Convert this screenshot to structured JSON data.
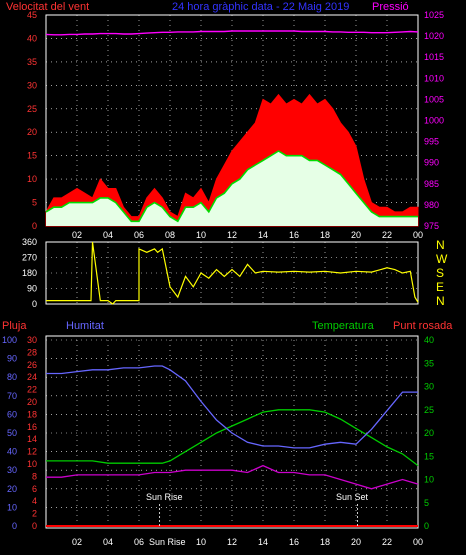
{
  "header": {
    "wind_speed_label": "Velocitat del vent",
    "period_title": "24 hora gràphic data - 22 Maig 2019",
    "pressure_label": "Pressió"
  },
  "colors": {
    "wind_gust": "#ff0000",
    "wind_avg": "#00dd00",
    "wind_fill": "#e6ffe6",
    "pressure": "#ff00ff",
    "direction": "#ffff00",
    "rain": "#ff0000",
    "humidity": "#6666ff",
    "temperature": "#00cc00",
    "dew_point": "#cc00cc",
    "header_title": "#3333ff",
    "left_axis": "#ff3333"
  },
  "direction_panel": {
    "compass": [
      "N",
      "W",
      "S",
      "E",
      "N"
    ]
  },
  "bottom_panel": {
    "rain_label": "Pluja",
    "humidity_label": "Humitat",
    "temperature_label": "Temperatura",
    "dew_label": "Punt rosada",
    "sunrise_label": "Sun Rise",
    "sunset_label": "Sun Set",
    "sunrise_tick_label": "Sun Rise"
  },
  "chart_data": [
    {
      "type": "area",
      "name": "wind-and-pressure",
      "x_ticks": [
        "02",
        "04",
        "06",
        "08",
        "10",
        "12",
        "14",
        "16",
        "18",
        "20",
        "22",
        "00"
      ],
      "ylim_left": [
        0,
        45
      ],
      "y_ticks_left": [
        0,
        5,
        10,
        15,
        20,
        25,
        30,
        35,
        40,
        45
      ],
      "ylim_right": [
        975,
        1025
      ],
      "y_ticks_right": [
        975,
        980,
        985,
        990,
        995,
        1000,
        1005,
        1010,
        1015,
        1020,
        1025
      ],
      "grid": true,
      "x_hours": [
        0,
        0.5,
        1,
        1.5,
        2,
        2.5,
        3,
        3.5,
        4,
        4.5,
        5,
        5.5,
        6,
        6.5,
        7,
        7.5,
        8,
        8.5,
        9,
        9.5,
        10,
        10.5,
        11,
        11.5,
        12,
        12.5,
        13,
        13.5,
        14,
        14.5,
        15,
        15.5,
        16,
        16.5,
        17,
        17.5,
        18,
        18.5,
        19,
        19.5,
        20,
        20.5,
        21,
        21.5,
        22,
        22.5,
        23,
        23.5,
        24
      ],
      "series": [
        {
          "key": "gust",
          "values": [
            3,
            6,
            6,
            7,
            8,
            7,
            6,
            10,
            8,
            8,
            4,
            2,
            2,
            6,
            8,
            6,
            3,
            2,
            7,
            6,
            8,
            5,
            10,
            13,
            16,
            18,
            20,
            22,
            27,
            26,
            28,
            26,
            27,
            26,
            28,
            26,
            27,
            25,
            22,
            20,
            17,
            10,
            5,
            4,
            4,
            3,
            3,
            4,
            4
          ]
        },
        {
          "key": "average",
          "values": [
            3,
            4,
            4,
            5,
            5,
            5,
            5,
            6,
            6,
            5,
            3,
            1,
            1,
            4,
            5,
            4,
            2,
            1,
            4,
            4,
            5,
            3,
            6,
            7,
            9,
            10,
            12,
            13,
            14,
            15,
            16,
            15,
            15,
            15,
            14,
            14,
            13,
            12,
            11,
            9,
            7,
            5,
            3,
            2,
            2,
            2,
            2,
            2,
            2
          ]
        },
        {
          "key": "pressure",
          "values": [
            1020.4,
            1020.3,
            1020.3,
            1020.4,
            1020.4,
            1020.5,
            1020.5,
            1020.6,
            1020.6,
            1020.6,
            1020.5,
            1020.5,
            1020.6,
            1020.7,
            1020.8,
            1020.9,
            1020.9,
            1021,
            1021,
            1021,
            1021.1,
            1021.1,
            1021.1,
            1021.1,
            1021.2,
            1021.2,
            1021.2,
            1021.2,
            1021.2,
            1021.2,
            1021.2,
            1021.2,
            1021.2,
            1021.1,
            1021.1,
            1021.1,
            1021.1,
            1021,
            1021,
            1020.9,
            1020.9,
            1020.9,
            1020.8,
            1020.8,
            1020.8,
            1020.9,
            1021,
            1021.1,
            1021
          ]
        }
      ]
    },
    {
      "type": "line",
      "name": "wind-direction",
      "y_ticks": [
        0,
        90,
        180,
        270,
        360
      ],
      "ylim": [
        0,
        360
      ],
      "x_hours": [
        0,
        1,
        2,
        2.9,
        3,
        3.5,
        4,
        4.3,
        4.5,
        5,
        5.5,
        6,
        6,
        6.5,
        7,
        7.2,
        7.5,
        8,
        8.5,
        9,
        9.5,
        10,
        10.5,
        11,
        11.5,
        12,
        12.5,
        13,
        13.5,
        14,
        15,
        16,
        17,
        18,
        19,
        20,
        21,
        22,
        22.5,
        23,
        23.5,
        23.8,
        24
      ],
      "values": [
        20,
        20,
        20,
        20,
        360,
        20,
        20,
        0,
        20,
        20,
        20,
        20,
        320,
        300,
        320,
        300,
        320,
        100,
        40,
        160,
        100,
        180,
        150,
        200,
        160,
        200,
        160,
        230,
        180,
        190,
        185,
        190,
        185,
        190,
        180,
        190,
        185,
        210,
        200,
        180,
        190,
        40,
        10
      ]
    },
    {
      "type": "line",
      "name": "humidity-temperature",
      "ylim_humidity": [
        0,
        100
      ],
      "y_ticks_humidity": [
        0,
        10,
        20,
        30,
        40,
        50,
        60,
        70,
        80,
        90,
        100
      ],
      "ylim_rain": [
        0,
        30
      ],
      "y_ticks_rain": [
        0,
        2,
        4,
        6,
        8,
        10,
        12,
        14,
        16,
        18,
        20,
        22,
        24,
        26,
        28,
        30
      ],
      "ylim_temperature": [
        0,
        40
      ],
      "y_ticks_temperature": [
        0,
        5,
        10,
        15,
        20,
        25,
        30,
        35,
        40
      ],
      "x_hours": [
        0,
        1,
        2,
        3,
        4,
        5,
        6,
        7,
        7.5,
        8,
        9,
        10,
        11,
        12,
        13,
        14,
        15,
        16,
        17,
        18,
        19,
        20,
        21,
        22,
        23,
        24
      ],
      "series": [
        {
          "key": "humidity",
          "values": [
            82,
            82,
            83,
            84,
            84,
            85,
            85,
            86,
            86,
            84,
            78,
            67,
            57,
            50,
            45,
            43,
            43,
            42,
            42,
            44,
            45,
            44,
            52,
            62,
            72,
            72
          ]
        },
        {
          "key": "temperature",
          "values": [
            14,
            14,
            14,
            14,
            13.5,
            13.5,
            13.5,
            13.5,
            13.5,
            14,
            16,
            18,
            20,
            21.5,
            23,
            24.5,
            25,
            25,
            25,
            24.5,
            23,
            21,
            19,
            17,
            15.5,
            13
          ]
        },
        {
          "key": "dew_point",
          "values": [
            10.5,
            10.5,
            11,
            11,
            11,
            11,
            11,
            11.5,
            11.5,
            11.5,
            12,
            12,
            12,
            12,
            11.5,
            13,
            11.5,
            11.5,
            11,
            11,
            10,
            9,
            8,
            9,
            10,
            9
          ]
        },
        {
          "key": "rain",
          "values": [
            0,
            0,
            0,
            0,
            0,
            0,
            0,
            0,
            0,
            0,
            0,
            0,
            0,
            0,
            0,
            0,
            0,
            0,
            0,
            0,
            0,
            0,
            0,
            0,
            0,
            0
          ]
        }
      ],
      "sunrise_hour": 7.33,
      "sunset_hour": 20.1
    }
  ]
}
